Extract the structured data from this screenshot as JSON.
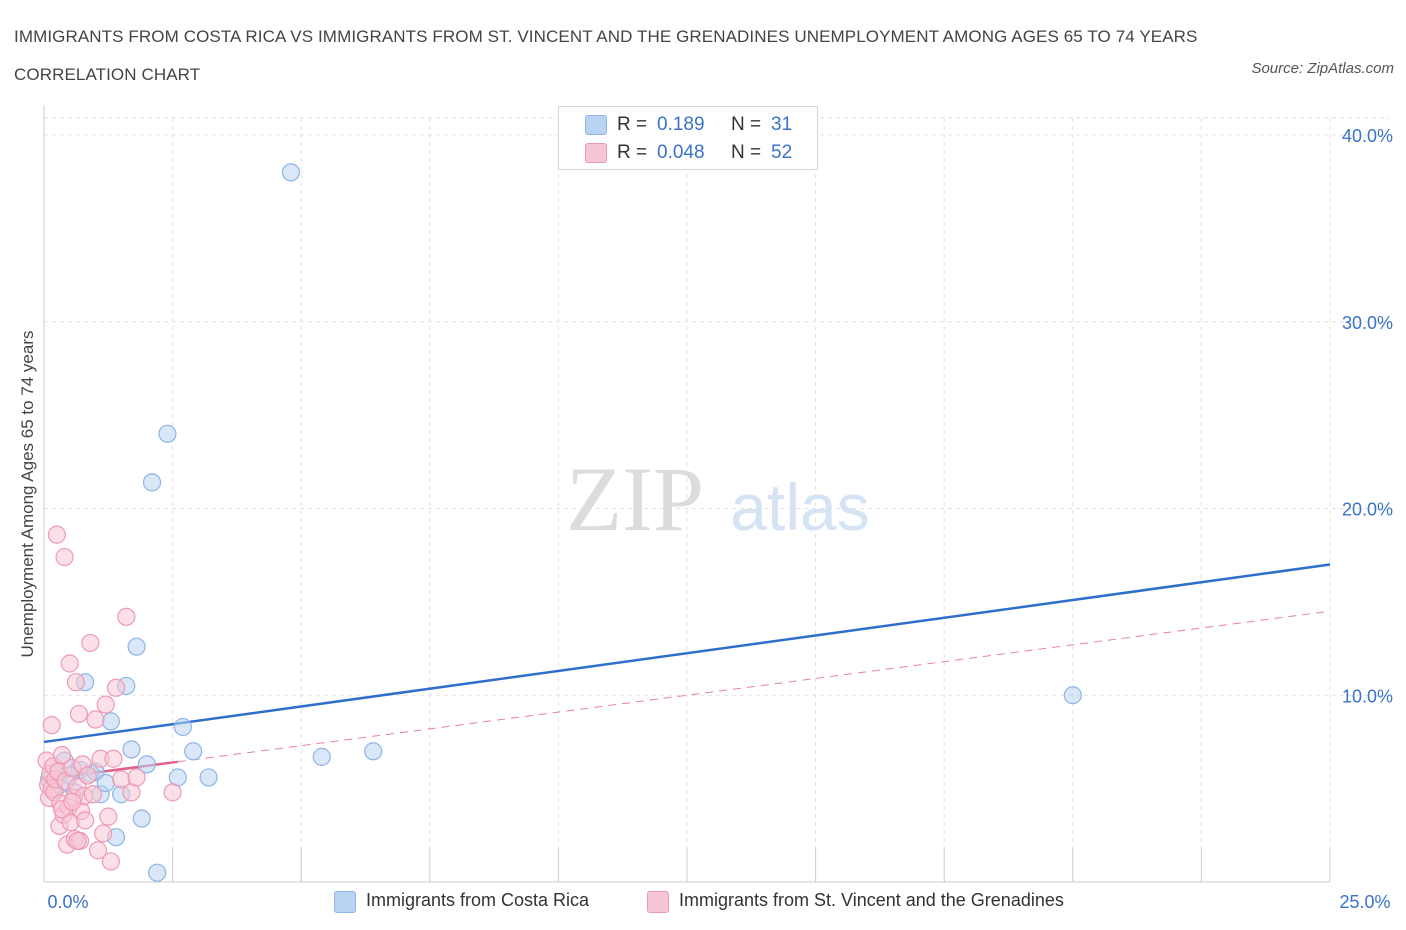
{
  "title": "IMMIGRANTS FROM COSTA RICA VS IMMIGRANTS FROM ST. VINCENT AND THE GRENADINES UNEMPLOYMENT AMONG AGES 65 TO 74 YEARS CORRELATION CHART",
  "source": "Source: ZipAtlas.com",
  "watermark": {
    "zip": "ZIP",
    "atlas": "atlas"
  },
  "legend": {
    "r_label": "R =",
    "n_label": "N =",
    "rows": [
      {
        "r": "0.189",
        "n": "31"
      },
      {
        "r": "0.048",
        "n": "52"
      }
    ]
  },
  "colors": {
    "series1_fill": "#b9d3f3",
    "series1_stroke": "#8fb4e5",
    "series1_line": "#2e6fcc",
    "series2_fill": "#f7c6d5",
    "series2_stroke": "#ee9ab3",
    "series2_line": "#e0628a",
    "tick_text": "#3a73c8",
    "grid": "#e2e2e2"
  },
  "chart_data": {
    "type": "scatter",
    "title": "IMMIGRANTS FROM COSTA RICA VS IMMIGRANTS FROM ST. VINCENT AND THE GRENADINES UNEMPLOYMENT AMONG AGES 65 TO 74 YEARS CORRELATION CHART",
    "xlabel": "",
    "ylabel": "Unemployment Among Ages 65 to 74 years",
    "xlim": [
      0,
      25
    ],
    "ylim": [
      0,
      40
    ],
    "x_tick_labels": [
      {
        "value": 0,
        "label": "0.0%"
      },
      {
        "value": 25,
        "label": "25.0%"
      }
    ],
    "y_tick_labels": [
      {
        "value": 10,
        "label": "10.0%"
      },
      {
        "value": 20,
        "label": "20.0%"
      },
      {
        "value": 30,
        "label": "30.0%"
      },
      {
        "value": 40,
        "label": "40.0%"
      }
    ],
    "grid": true,
    "legend_position": "top-center",
    "series": [
      {
        "name": "Immigrants from Costa Rica",
        "r": 0.189,
        "n": 31,
        "trend": {
          "x": [
            0,
            25
          ],
          "y": [
            7.5,
            17.0
          ]
        },
        "points": [
          [
            0.1,
            5.5
          ],
          [
            0.3,
            5.2
          ],
          [
            0.4,
            6.5
          ],
          [
            0.6,
            4.8
          ],
          [
            0.7,
            6.0
          ],
          [
            0.8,
            10.7
          ],
          [
            0.9,
            5.8
          ],
          [
            1.0,
            5.9
          ],
          [
            1.1,
            4.7
          ],
          [
            1.2,
            5.3
          ],
          [
            1.3,
            8.6
          ],
          [
            1.4,
            2.4
          ],
          [
            1.5,
            4.7
          ],
          [
            1.6,
            10.5
          ],
          [
            1.7,
            7.1
          ],
          [
            1.8,
            12.6
          ],
          [
            1.9,
            3.4
          ],
          [
            2.0,
            6.3
          ],
          [
            2.1,
            21.4
          ],
          [
            2.2,
            0.5
          ],
          [
            2.4,
            24.0
          ],
          [
            2.6,
            5.6
          ],
          [
            2.7,
            8.3
          ],
          [
            2.9,
            7.0
          ],
          [
            3.2,
            5.6
          ],
          [
            4.8,
            38.0
          ],
          [
            5.4,
            6.7
          ],
          [
            6.4,
            7.0
          ],
          [
            20.0,
            10.0
          ],
          [
            0.2,
            4.9
          ],
          [
            0.5,
            5.7
          ]
        ]
      },
      {
        "name": "Immigrants from St. Vincent and the Grenadines",
        "r": 0.048,
        "n": 52,
        "trend": {
          "x": [
            0,
            25
          ],
          "y": [
            5.5,
            14.5
          ]
        },
        "trend_solid_to_x": 2.6,
        "points": [
          [
            0.05,
            6.5
          ],
          [
            0.08,
            5.2
          ],
          [
            0.1,
            4.5
          ],
          [
            0.12,
            5.8
          ],
          [
            0.15,
            5.0
          ],
          [
            0.18,
            6.2
          ],
          [
            0.2,
            4.8
          ],
          [
            0.22,
            5.5
          ],
          [
            0.25,
            18.6
          ],
          [
            0.28,
            5.9
          ],
          [
            0.3,
            3.0
          ],
          [
            0.32,
            4.2
          ],
          [
            0.35,
            6.8
          ],
          [
            0.38,
            3.6
          ],
          [
            0.4,
            17.4
          ],
          [
            0.42,
            5.4
          ],
          [
            0.45,
            2.0
          ],
          [
            0.48,
            4.0
          ],
          [
            0.5,
            11.7
          ],
          [
            0.52,
            3.2
          ],
          [
            0.55,
            6.1
          ],
          [
            0.58,
            4.5
          ],
          [
            0.6,
            2.3
          ],
          [
            0.62,
            10.7
          ],
          [
            0.65,
            5.1
          ],
          [
            0.68,
            9.0
          ],
          [
            0.7,
            2.2
          ],
          [
            0.72,
            3.8
          ],
          [
            0.75,
            6.3
          ],
          [
            0.78,
            4.6
          ],
          [
            0.8,
            3.3
          ],
          [
            0.85,
            5.7
          ],
          [
            0.9,
            12.8
          ],
          [
            0.95,
            4.7
          ],
          [
            1.0,
            8.7
          ],
          [
            1.05,
            1.7
          ],
          [
            1.1,
            6.6
          ],
          [
            1.15,
            2.6
          ],
          [
            1.2,
            9.5
          ],
          [
            1.25,
            3.5
          ],
          [
            1.3,
            1.1
          ],
          [
            1.35,
            6.6
          ],
          [
            1.4,
            10.4
          ],
          [
            1.5,
            5.5
          ],
          [
            1.6,
            14.2
          ],
          [
            1.7,
            4.8
          ],
          [
            1.8,
            5.6
          ],
          [
            0.15,
            8.4
          ],
          [
            0.35,
            3.9
          ],
          [
            0.55,
            4.3
          ],
          [
            2.5,
            4.8
          ],
          [
            0.65,
            2.2
          ]
        ]
      }
    ]
  },
  "bottom_legend": [
    {
      "label": "Immigrants from Costa Rica"
    },
    {
      "label": "Immigrants from St. Vincent and the Grenadines"
    }
  ]
}
